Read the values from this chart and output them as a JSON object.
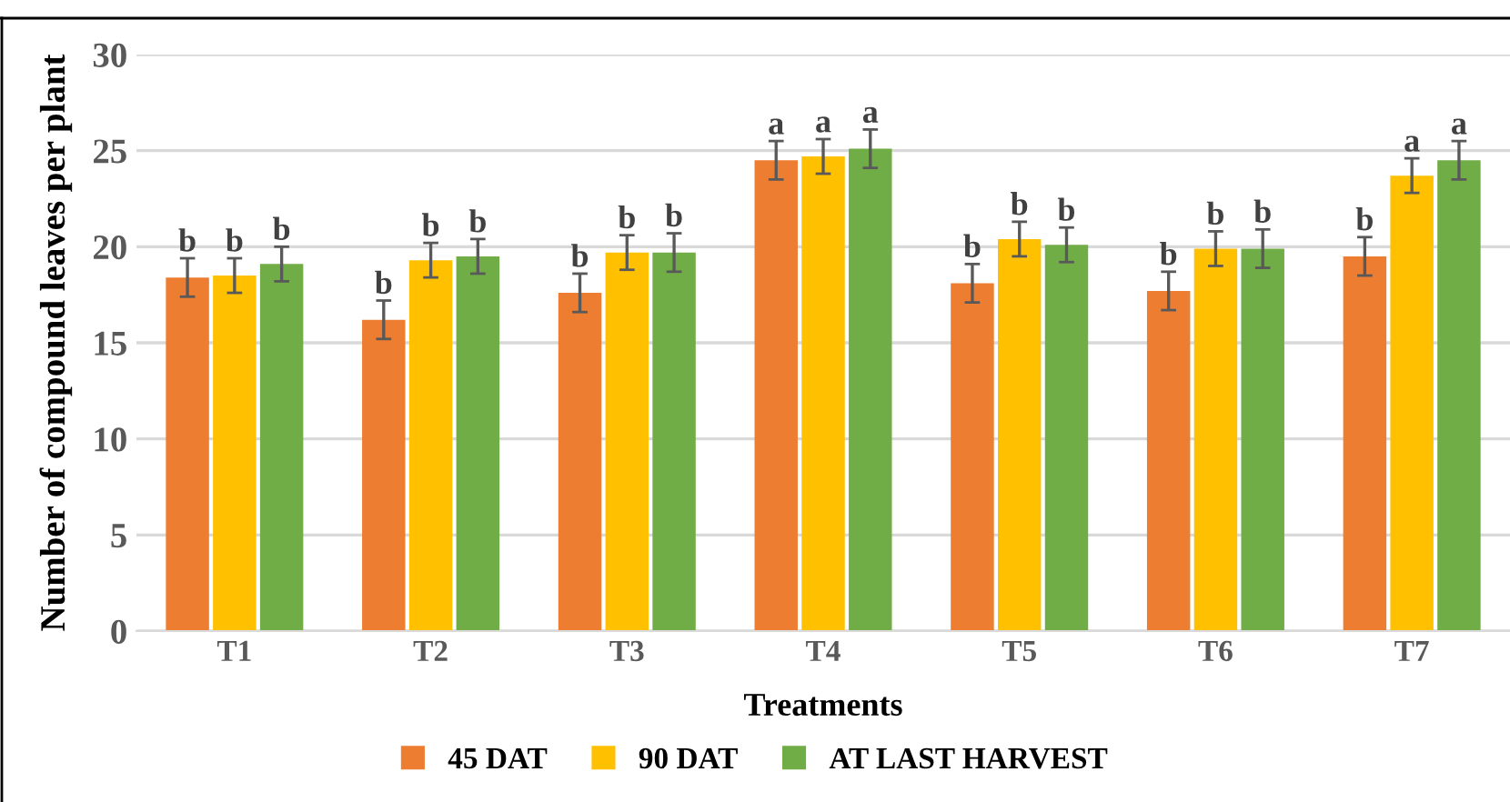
{
  "chart_data": {
    "type": "bar",
    "xlabel": "Treatments",
    "ylabel": "Number of compound leaves per plant",
    "categories": [
      "T1",
      "T2",
      "T3",
      "T4",
      "T5",
      "T6",
      "T7"
    ],
    "series": [
      {
        "name": "45 DAT",
        "color": "#ed7d31",
        "values": [
          18.4,
          16.2,
          17.6,
          24.5,
          18.1,
          17.7,
          19.5
        ],
        "errors": [
          1.0,
          1.0,
          1.0,
          1.0,
          1.0,
          1.0,
          1.0
        ],
        "value_labels": [
          "b",
          "b",
          "b",
          "a",
          "b",
          "b",
          "b"
        ]
      },
      {
        "name": "90 DAT",
        "color": "#ffc000",
        "values": [
          18.5,
          19.3,
          19.7,
          24.7,
          20.4,
          19.9,
          23.7
        ],
        "errors": [
          0.9,
          0.9,
          0.9,
          0.9,
          0.9,
          0.9,
          0.9
        ],
        "value_labels": [
          "b",
          "b",
          "b",
          "a",
          "b",
          "b",
          "a"
        ]
      },
      {
        "name": "AT LAST HARVEST",
        "color": "#70ad47",
        "values": [
          19.1,
          19.5,
          19.7,
          25.1,
          20.1,
          19.9,
          24.5
        ],
        "errors": [
          0.9,
          0.9,
          1.0,
          1.0,
          0.9,
          1.0,
          1.0
        ],
        "value_labels": [
          "b",
          "b",
          "b",
          "a",
          "b",
          "b",
          "a"
        ]
      }
    ],
    "ylim": [
      0,
      30
    ],
    "yticks": [
      0,
      5,
      10,
      15,
      20,
      25,
      30
    ],
    "grid": "y",
    "legend": "bottom"
  }
}
